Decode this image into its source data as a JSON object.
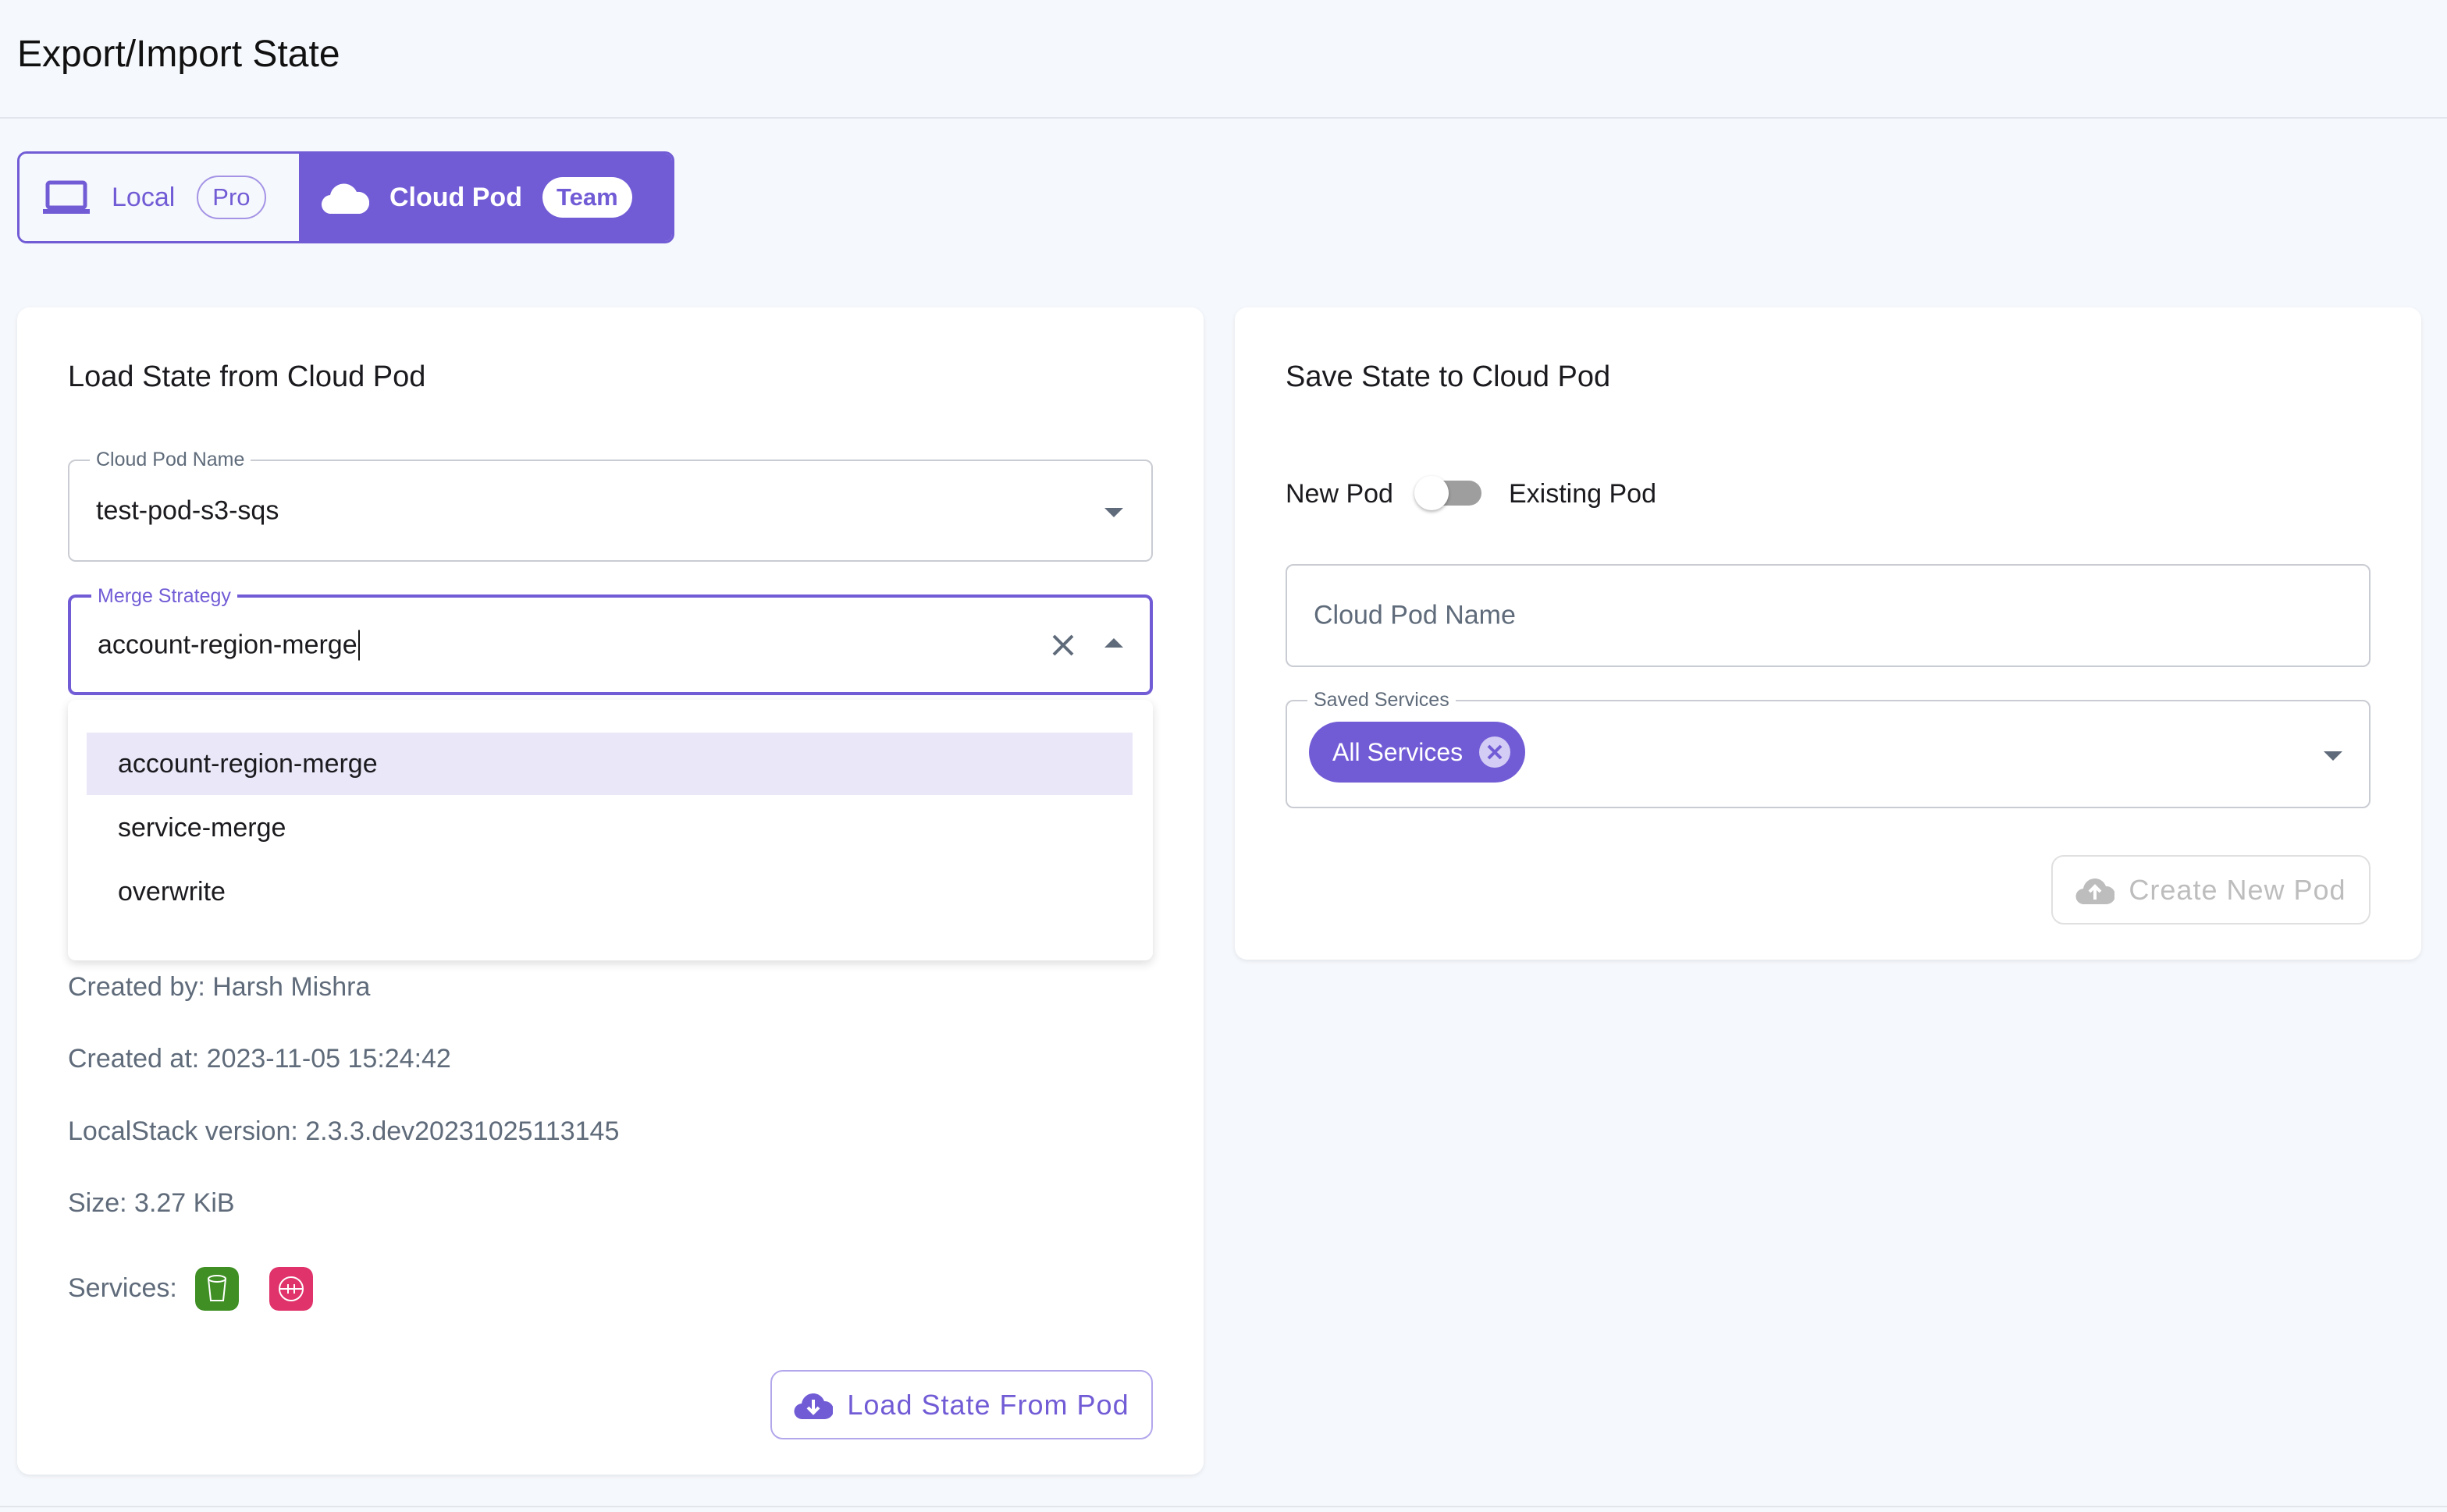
{
  "header": {
    "title": "Export/Import State"
  },
  "tabs": [
    {
      "label": "Local",
      "badge": "Pro",
      "icon": "laptop-icon",
      "active": false
    },
    {
      "label": "Cloud Pod",
      "badge": "Team",
      "icon": "cloud-icon",
      "active": true
    }
  ],
  "load": {
    "title": "Load State from Cloud Pod",
    "pod_name_label": "Cloud Pod Name",
    "pod_name_value": "test-pod-s3-sqs",
    "merge_label": "Merge Strategy",
    "merge_value": "account-region-merge",
    "merge_options": [
      "account-region-merge",
      "service-merge",
      "overwrite"
    ],
    "created_by": "Created by: Harsh Mishra",
    "created_at": "Created at: 2023-11-05 15:24:42",
    "version": "LocalStack version: 2.3.3.dev20231025113145",
    "size": "Size: 3.27 KiB",
    "services_label": "Services:",
    "services": [
      {
        "icon": "s3-bucket-icon",
        "color": "#3f8f24"
      },
      {
        "icon": "sqs-queue-icon",
        "color": "#e0336b"
      }
    ],
    "button": "Load State From Pod"
  },
  "save": {
    "title": "Save State to Cloud Pod",
    "toggle_left": "New Pod",
    "toggle_right": "Existing Pod",
    "toggle_on": false,
    "pod_name_placeholder": "Cloud Pod Name",
    "services_label": "Saved Services",
    "chip": "All Services",
    "button": "Create New Pod"
  },
  "colors": {
    "accent": "#725cd6",
    "muted": "#5f6b7a"
  }
}
